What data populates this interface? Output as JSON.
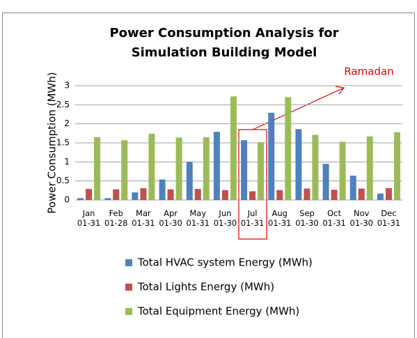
{
  "chart_data": {
    "type": "bar",
    "title": "Power Consumption Analysis for Simulation Building Model",
    "y_label": "Power Consumption (MWh)",
    "categories": [
      "Jan 01-31",
      "Feb 01-28",
      "Mar 01-31",
      "Apr 01-30",
      "May 01-31",
      "Jun 01-30",
      "Jul 01-31",
      "Aug 01-31",
      "Sep 01-30",
      "Oct 01-31",
      "Nov 01-30",
      "Dec 01-31"
    ],
    "series": [
      {
        "name": "Total HVAC system Energy (MWh)",
        "color": "#4f81bd",
        "values": [
          0.05,
          0.05,
          0.2,
          0.54,
          1.0,
          1.79,
          1.57,
          2.29,
          1.86,
          0.95,
          0.64,
          0.17
        ]
      },
      {
        "name": "Total Lights Energy (MWh)",
        "color": "#c0504d",
        "values": [
          0.29,
          0.28,
          0.31,
          0.28,
          0.29,
          0.26,
          0.23,
          0.26,
          0.3,
          0.27,
          0.3,
          0.31
        ]
      },
      {
        "name": "Total Equipment Energy (MWh)",
        "color": "#9bbb59",
        "values": [
          1.65,
          1.57,
          1.74,
          1.64,
          1.65,
          2.72,
          1.52,
          2.7,
          1.71,
          1.53,
          1.67,
          1.78
        ]
      }
    ],
    "annotation": "Ramadan",
    "ylim": [
      0,
      3
    ],
    "yticks": [
      0,
      0.5,
      1,
      1.5,
      2,
      2.5,
      3
    ],
    "grid": true
  }
}
